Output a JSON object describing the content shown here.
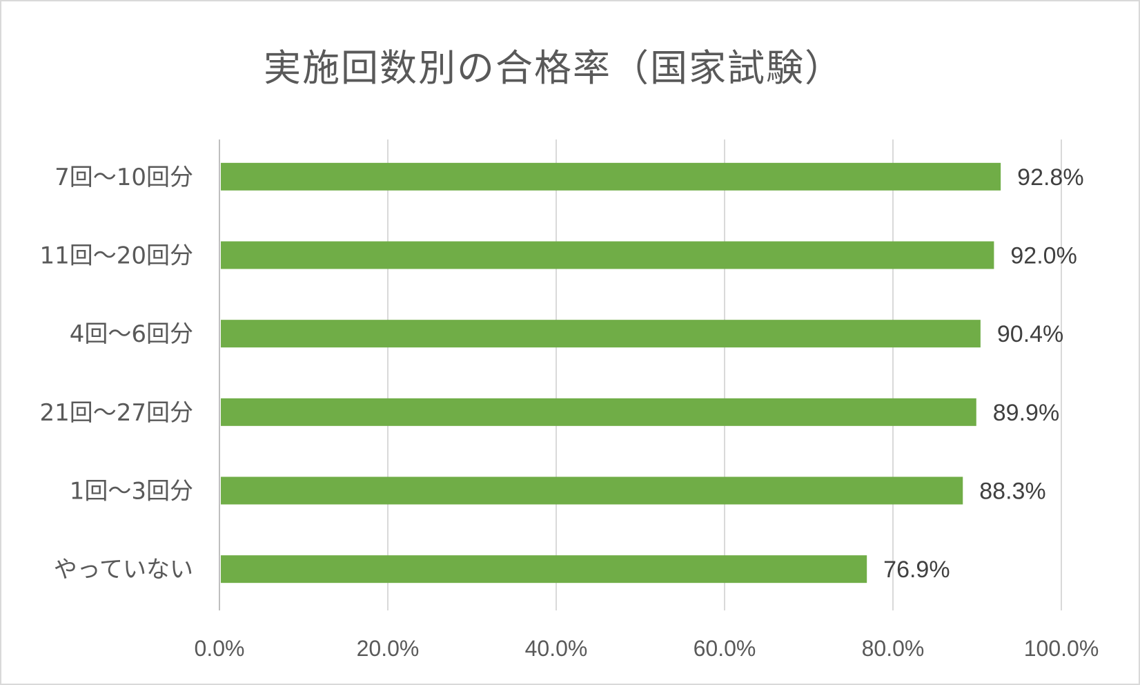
{
  "chart_data": {
    "type": "bar",
    "orientation": "horizontal",
    "title": "実施回数別の合格率（国家試験）",
    "categories": [
      "7回～10回分",
      "11回～20回分",
      "4回～6回分",
      "21回～27回分",
      "1回～3回分",
      "やっていない"
    ],
    "values": [
      92.8,
      92.0,
      90.4,
      89.9,
      88.3,
      76.9
    ],
    "data_labels": [
      "92.8%",
      "92.0%",
      "90.4%",
      "89.9%",
      "88.3%",
      "76.9%"
    ],
    "xlim": [
      0,
      100
    ],
    "x_ticks": [
      0,
      20,
      40,
      60,
      80,
      100
    ],
    "x_tick_labels": [
      "0.0%",
      "20.0%",
      "40.0%",
      "60.0%",
      "80.0%",
      "100.0%"
    ],
    "xlabel": "",
    "ylabel": "",
    "grid": "vertical",
    "legend": "none",
    "bar_color": "#70ad47"
  }
}
